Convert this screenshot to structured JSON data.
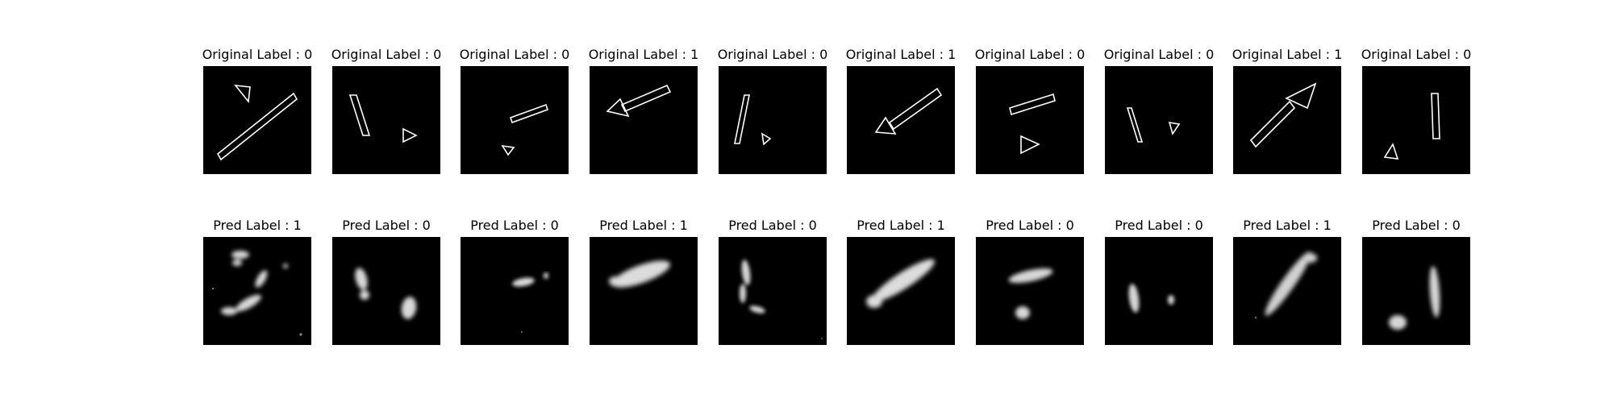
{
  "figure": {
    "rows": [
      {
        "id": "original",
        "items": [
          {
            "label": "Original Label : 0",
            "shapes": [
              "triangle",
              "bar"
            ]
          },
          {
            "label": "Original Label : 0",
            "shapes": [
              "bar",
              "triangle"
            ]
          },
          {
            "label": "Original Label : 0",
            "shapes": [
              "bar",
              "triangle"
            ]
          },
          {
            "label": "Original Label : 1",
            "shapes": [
              "arrow"
            ]
          },
          {
            "label": "Original Label : 0",
            "shapes": [
              "bar",
              "triangle"
            ]
          },
          {
            "label": "Original Label : 1",
            "shapes": [
              "arrow"
            ]
          },
          {
            "label": "Original Label : 0",
            "shapes": [
              "bar",
              "triangle"
            ]
          },
          {
            "label": "Original Label : 0",
            "shapes": [
              "bar",
              "triangle"
            ]
          },
          {
            "label": "Original Label : 1",
            "shapes": [
              "arrow"
            ]
          },
          {
            "label": "Original Label : 0",
            "shapes": [
              "bar",
              "triangle"
            ]
          }
        ]
      },
      {
        "id": "predicted",
        "items": [
          {
            "label": "Pred Label : 1",
            "style": "blurry-reconstruction"
          },
          {
            "label": "Pred Label : 0",
            "style": "blurry-reconstruction"
          },
          {
            "label": "Pred Label : 0",
            "style": "blurry-reconstruction"
          },
          {
            "label": "Pred Label : 1",
            "style": "blurry-reconstruction"
          },
          {
            "label": "Pred Label : 0",
            "style": "blurry-reconstruction"
          },
          {
            "label": "Pred Label : 1",
            "style": "blurry-reconstruction"
          },
          {
            "label": "Pred Label : 0",
            "style": "blurry-reconstruction"
          },
          {
            "label": "Pred Label : 0",
            "style": "blurry-reconstruction"
          },
          {
            "label": "Pred Label : 1",
            "style": "blurry-reconstruction"
          },
          {
            "label": "Pred Label : 0",
            "style": "blurry-reconstruction"
          }
        ]
      }
    ],
    "colors": {
      "background": "#ffffff",
      "image_bg": "#000000",
      "stroke": "#ffffff",
      "text": "#000000"
    }
  }
}
